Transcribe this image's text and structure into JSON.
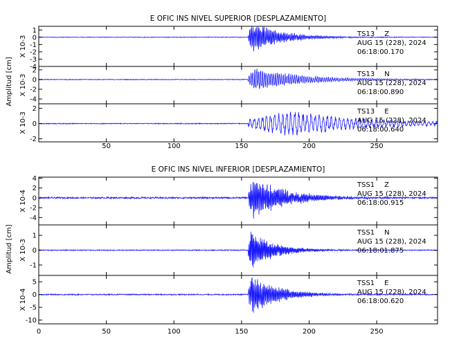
{
  "colors": {
    "trace": "#1a1aff",
    "axis": "#000000",
    "background": "#ffffff"
  },
  "chart_data": [
    {
      "type": "line",
      "title": "E OFIC INS NIVEL SUPERIOR [DESPLAZAMIENTO]",
      "ylabel": "Amplitud [cm]",
      "xlim": [
        0,
        295
      ],
      "xticks": [
        50,
        100,
        150,
        200,
        250
      ],
      "series": [
        {
          "name": "TS13 Z",
          "station": "TS13",
          "component": "Z",
          "date": "AUG 15 (228), 2024",
          "time": "06:18:00.170",
          "scale": "X 10-3",
          "ylim": [
            -4,
            1.5
          ],
          "yticks": [
            1,
            0,
            -1,
            -2,
            -3,
            -4
          ],
          "onset_s": 155,
          "peak_s": 158,
          "peak_amplitude": 2.3,
          "noise_amplitude": 0.04,
          "coda_decay_s": 22,
          "period_s": 0.9
        },
        {
          "name": "TS13 N",
          "station": "TS13",
          "component": "N",
          "date": "AUG 15 (228), 2024",
          "time": "06:18:00.890",
          "scale": "X 10-3",
          "ylim": [
            -5,
            2.7
          ],
          "yticks": [
            2,
            0,
            -2,
            -4
          ],
          "onset_s": 155,
          "peak_s": 160,
          "peak_amplitude": 2.6,
          "noise_amplitude": 0.06,
          "coda_decay_s": 35,
          "period_s": 1.4
        },
        {
          "name": "TS13 E",
          "station": "TS13",
          "component": "E",
          "date": "AUG 15 (228), 2024",
          "time": "06:18:00.640",
          "scale": "X 10-3",
          "ylim": [
            -2.4,
            2.6
          ],
          "yticks": [
            2,
            0,
            -2
          ],
          "onset_s": 155,
          "peak_s": 185,
          "peak_amplitude": 1.8,
          "noise_amplitude": 0.05,
          "coda_decay_s": 60,
          "period_s": 3.0
        }
      ]
    },
    {
      "type": "line",
      "title": "E OFIC INS NIVEL INFERIOR [DESPLAZAMIENTO]",
      "ylabel": "Amplitud [cm]",
      "xlim": [
        0,
        295
      ],
      "xticks": [
        0,
        50,
        100,
        150,
        200,
        250
      ],
      "series": [
        {
          "name": "TSS1 Z",
          "station": "TSS1",
          "component": "Z",
          "date": "AUG 15 (228), 2024",
          "time": "06:18:00.915",
          "scale": "X 10-4",
          "ylim": [
            -5.5,
            4.2
          ],
          "yticks": [
            4,
            2,
            0,
            -2,
            -4
          ],
          "onset_s": 155,
          "peak_s": 159,
          "peak_amplitude": 4.5,
          "noise_amplitude": 0.15,
          "coda_decay_s": 25,
          "period_s": 0.8
        },
        {
          "name": "TSS1 N",
          "station": "TSS1",
          "component": "N",
          "date": "AUG 15 (228), 2024",
          "time": "06:18:01.875",
          "scale": "X 10-3",
          "ylim": [
            -1.7,
            1.7
          ],
          "yticks": [
            1,
            0,
            -1
          ],
          "onset_s": 155,
          "peak_s": 157,
          "peak_amplitude": 1.3,
          "noise_amplitude": 0.03,
          "coda_decay_s": 18,
          "period_s": 0.7
        },
        {
          "name": "TSS1 E",
          "station": "TSS1",
          "component": "E",
          "date": "AUG 15 (228), 2024",
          "time": "06:18:00.620",
          "scale": "X 10-4",
          "ylim": [
            -11.5,
            7.5
          ],
          "yticks": [
            5,
            0,
            -5,
            -10
          ],
          "onset_s": 155,
          "peak_s": 158,
          "peak_amplitude": 8.0,
          "noise_amplitude": 0.2,
          "coda_decay_s": 20,
          "period_s": 0.8
        }
      ]
    }
  ]
}
